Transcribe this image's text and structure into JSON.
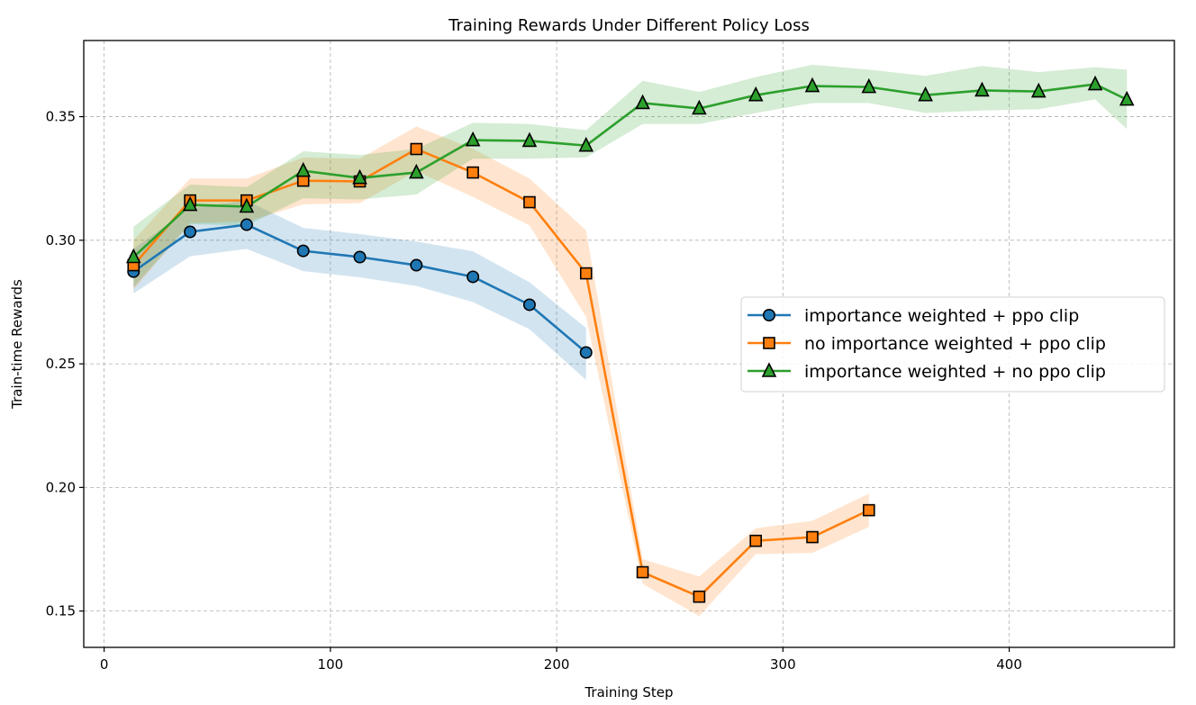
{
  "chart_data": {
    "type": "line",
    "title": "Training Rewards Under Different Policy Loss",
    "xlabel": "Training Step",
    "ylabel": "Train-time Rewards",
    "xlim": [
      -9,
      473
    ],
    "ylim": [
      0.1353,
      0.3808
    ],
    "xticks": [
      0,
      100,
      200,
      300,
      400
    ],
    "xtick_labels": [
      "0",
      "100",
      "200",
      "300",
      "400"
    ],
    "yticks": [
      0.15,
      0.2,
      0.25,
      0.3,
      0.35
    ],
    "ytick_labels": [
      "0.15",
      "0.20",
      "0.25",
      "0.30",
      "0.35"
    ],
    "grid": true,
    "legend_position": "center-right",
    "series": [
      {
        "name": "importance weighted + ppo clip",
        "color": "#1f77b4",
        "marker": "circle",
        "x": [
          13,
          38,
          63,
          88,
          113,
          138,
          163,
          188,
          213
        ],
        "y": [
          0.2873,
          0.3034,
          0.3063,
          0.2957,
          0.2932,
          0.2899,
          0.2852,
          0.2739,
          0.2546
        ],
        "lower": [
          0.2785,
          0.2935,
          0.2965,
          0.2875,
          0.285,
          0.2815,
          0.275,
          0.264,
          0.2435
        ],
        "upper": [
          0.2965,
          0.313,
          0.316,
          0.305,
          0.3025,
          0.2995,
          0.2955,
          0.283,
          0.2645
        ]
      },
      {
        "name": "no importance weighted + ppo clip",
        "color": "#ff7f0e",
        "marker": "square",
        "x": [
          13,
          38,
          63,
          88,
          113,
          138,
          163,
          188,
          213,
          238,
          263,
          288,
          313,
          338
        ],
        "y": [
          0.2899,
          0.3161,
          0.3161,
          0.3241,
          0.3238,
          0.3369,
          0.3274,
          0.3154,
          0.2866,
          0.1657,
          0.1558,
          0.1784,
          0.1799,
          0.1908
        ],
        "lower": [
          0.28,
          0.307,
          0.3075,
          0.3145,
          0.315,
          0.328,
          0.3175,
          0.306,
          0.269,
          0.161,
          0.148,
          0.173,
          0.1735,
          0.184
        ],
        "upper": [
          0.3,
          0.325,
          0.325,
          0.3335,
          0.333,
          0.346,
          0.337,
          0.325,
          0.304,
          0.171,
          0.164,
          0.1835,
          0.1865,
          0.1975
        ]
      },
      {
        "name": "importance weighted + no ppo clip",
        "color": "#2ca02c",
        "marker": "triangle",
        "x": [
          13,
          38,
          63,
          88,
          113,
          138,
          163,
          188,
          213,
          238,
          263,
          288,
          313,
          338,
          363,
          388,
          413,
          438,
          452
        ],
        "y": [
          0.2932,
          0.3143,
          0.3136,
          0.3281,
          0.3252,
          0.3274,
          0.3405,
          0.3402,
          0.3383,
          0.3555,
          0.3533,
          0.3587,
          0.3624,
          0.362,
          0.3587,
          0.3606,
          0.3602,
          0.3631,
          0.3569
        ],
        "lower": [
          0.281,
          0.3065,
          0.306,
          0.317,
          0.3165,
          0.3185,
          0.333,
          0.333,
          0.3335,
          0.347,
          0.347,
          0.3515,
          0.3555,
          0.3555,
          0.3515,
          0.3525,
          0.353,
          0.357,
          0.345
        ],
        "upper": [
          0.3055,
          0.3225,
          0.3215,
          0.336,
          0.3345,
          0.337,
          0.3475,
          0.347,
          0.3445,
          0.3645,
          0.36,
          0.366,
          0.371,
          0.369,
          0.3665,
          0.3705,
          0.368,
          0.37,
          0.369
        ]
      }
    ]
  }
}
